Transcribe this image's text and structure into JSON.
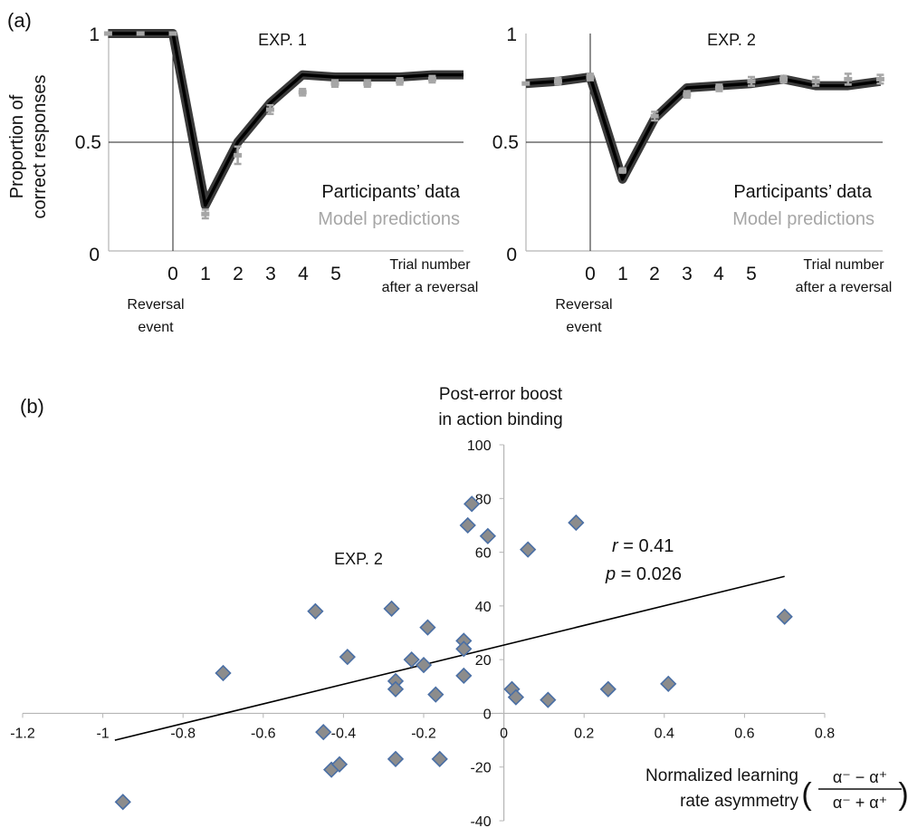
{
  "panels": {
    "a_label": "(a)",
    "b_label": "(b)"
  },
  "chart_data": [
    {
      "type": "line",
      "title": "EXP. 1",
      "ylabel": "Proportion of correct responses",
      "ylabel_lines": [
        "Proportion of",
        "correct responses"
      ],
      "xlabel_lines": [
        "Trial number",
        "after a reversal"
      ],
      "reversal_label_lines": [
        "Reversal",
        "event"
      ],
      "yticks": [
        "0",
        "0.5",
        "1"
      ],
      "xticks": [
        "0",
        "1",
        "2",
        "3",
        "4",
        "5"
      ],
      "ylim": [
        0,
        1
      ],
      "reference_line": 0.5,
      "x": [
        -2,
        -1,
        0,
        1,
        2,
        3,
        4,
        5,
        6,
        7,
        8,
        9
      ],
      "legend": [
        "Participants’ data",
        "Model predictions"
      ],
      "series": [
        {
          "name": "Participants’ data",
          "style": "band",
          "color": "#111111",
          "values": [
            1,
            1,
            1,
            0.21,
            0.5,
            0.68,
            0.81,
            0.8,
            0.8,
            0.8,
            0.81,
            0.81
          ]
        },
        {
          "name": "Model predictions",
          "style": "markers",
          "color": "#a6a6a6",
          "values": [
            1,
            1,
            1,
            0.17,
            0.44,
            0.65,
            0.73,
            0.77,
            0.77,
            0.78,
            0.79,
            0.78
          ],
          "errors": [
            0,
            0,
            0,
            0.02,
            0.04,
            0.02,
            0.015,
            0.015,
            0.015,
            0.015,
            0.015,
            0.015
          ]
        }
      ]
    },
    {
      "type": "line",
      "title": "EXP. 2",
      "xlabel_lines": [
        "Trial number",
        "after a reversal"
      ],
      "reversal_label_lines": [
        "Reversal",
        "event"
      ],
      "yticks": [
        "0",
        "0.5",
        "1"
      ],
      "xticks": [
        "0",
        "1",
        "2",
        "3",
        "4",
        "5"
      ],
      "ylim": [
        0,
        1
      ],
      "reference_line": 0.5,
      "x": [
        -2,
        -1,
        0,
        1,
        2,
        3,
        4,
        5,
        6,
        7,
        8,
        9
      ],
      "legend": [
        "Participants’ data",
        "Model predictions"
      ],
      "series": [
        {
          "name": "Participants’ data",
          "style": "band",
          "color": "#111111",
          "values": [
            0.77,
            0.78,
            0.8,
            0.33,
            0.61,
            0.75,
            0.76,
            0.77,
            0.79,
            0.76,
            0.76,
            0.78
          ]
        },
        {
          "name": "Model predictions",
          "style": "markers",
          "color": "#a6a6a6",
          "values": [
            0.77,
            0.78,
            0.8,
            0.37,
            0.62,
            0.72,
            0.75,
            0.78,
            0.79,
            0.78,
            0.79,
            0.79
          ],
          "errors": [
            0,
            0.015,
            0.015,
            0.01,
            0.02,
            0.015,
            0.015,
            0.02,
            0.015,
            0.02,
            0.025,
            0.02
          ]
        }
      ]
    },
    {
      "type": "scatter",
      "title": "EXP. 2",
      "ylabel_lines": [
        "Post-error boost",
        "in action binding"
      ],
      "xlabel_lines": [
        "Normalized learning",
        "rate asymmetry"
      ],
      "formula": {
        "num": "α⁻ − α⁺",
        "den": "α⁻ + α⁺",
        "open": "(",
        "close": ")"
      },
      "xlim": [
        -1.2,
        0.8
      ],
      "ylim": [
        -40,
        100
      ],
      "xticks": [
        "-1.2",
        "-1",
        "-0.8",
        "-0.6",
        "-0.4",
        "-0.2",
        "0",
        "0.2",
        "0.4",
        "0.6",
        "0.8"
      ],
      "yticks": [
        "-40",
        "-20",
        "0",
        "20",
        "40",
        "60",
        "80",
        "100"
      ],
      "stats": {
        "r_sym": "r",
        "r_val": " = 0.41",
        "p_sym": "p",
        "p_val": " = 0.026"
      },
      "fit_line": {
        "x": [
          -0.97,
          0.7
        ],
        "y": [
          -10,
          51
        ]
      },
      "marker_color": "#8c8c8c",
      "marker_edge": "#4a6fa5",
      "points": [
        {
          "x": -0.95,
          "y": -33
        },
        {
          "x": -0.7,
          "y": 15
        },
        {
          "x": -0.47,
          "y": 38
        },
        {
          "x": -0.45,
          "y": -7
        },
        {
          "x": -0.43,
          "y": -21
        },
        {
          "x": -0.41,
          "y": -19
        },
        {
          "x": -0.39,
          "y": 21
        },
        {
          "x": -0.28,
          "y": 39
        },
        {
          "x": -0.27,
          "y": 12
        },
        {
          "x": -0.27,
          "y": 9
        },
        {
          "x": -0.27,
          "y": -17
        },
        {
          "x": -0.23,
          "y": 20
        },
        {
          "x": -0.2,
          "y": 18
        },
        {
          "x": -0.19,
          "y": 32
        },
        {
          "x": -0.17,
          "y": 7
        },
        {
          "x": -0.16,
          "y": -17
        },
        {
          "x": -0.1,
          "y": 27
        },
        {
          "x": -0.1,
          "y": 24
        },
        {
          "x": -0.1,
          "y": 14
        },
        {
          "x": -0.09,
          "y": 70
        },
        {
          "x": -0.08,
          "y": 78
        },
        {
          "x": -0.04,
          "y": 66
        },
        {
          "x": 0.02,
          "y": 9
        },
        {
          "x": 0.03,
          "y": 6
        },
        {
          "x": 0.06,
          "y": 61
        },
        {
          "x": 0.11,
          "y": 5
        },
        {
          "x": 0.18,
          "y": 71
        },
        {
          "x": 0.26,
          "y": 9
        },
        {
          "x": 0.41,
          "y": 11
        },
        {
          "x": 0.7,
          "y": 36
        }
      ]
    }
  ]
}
